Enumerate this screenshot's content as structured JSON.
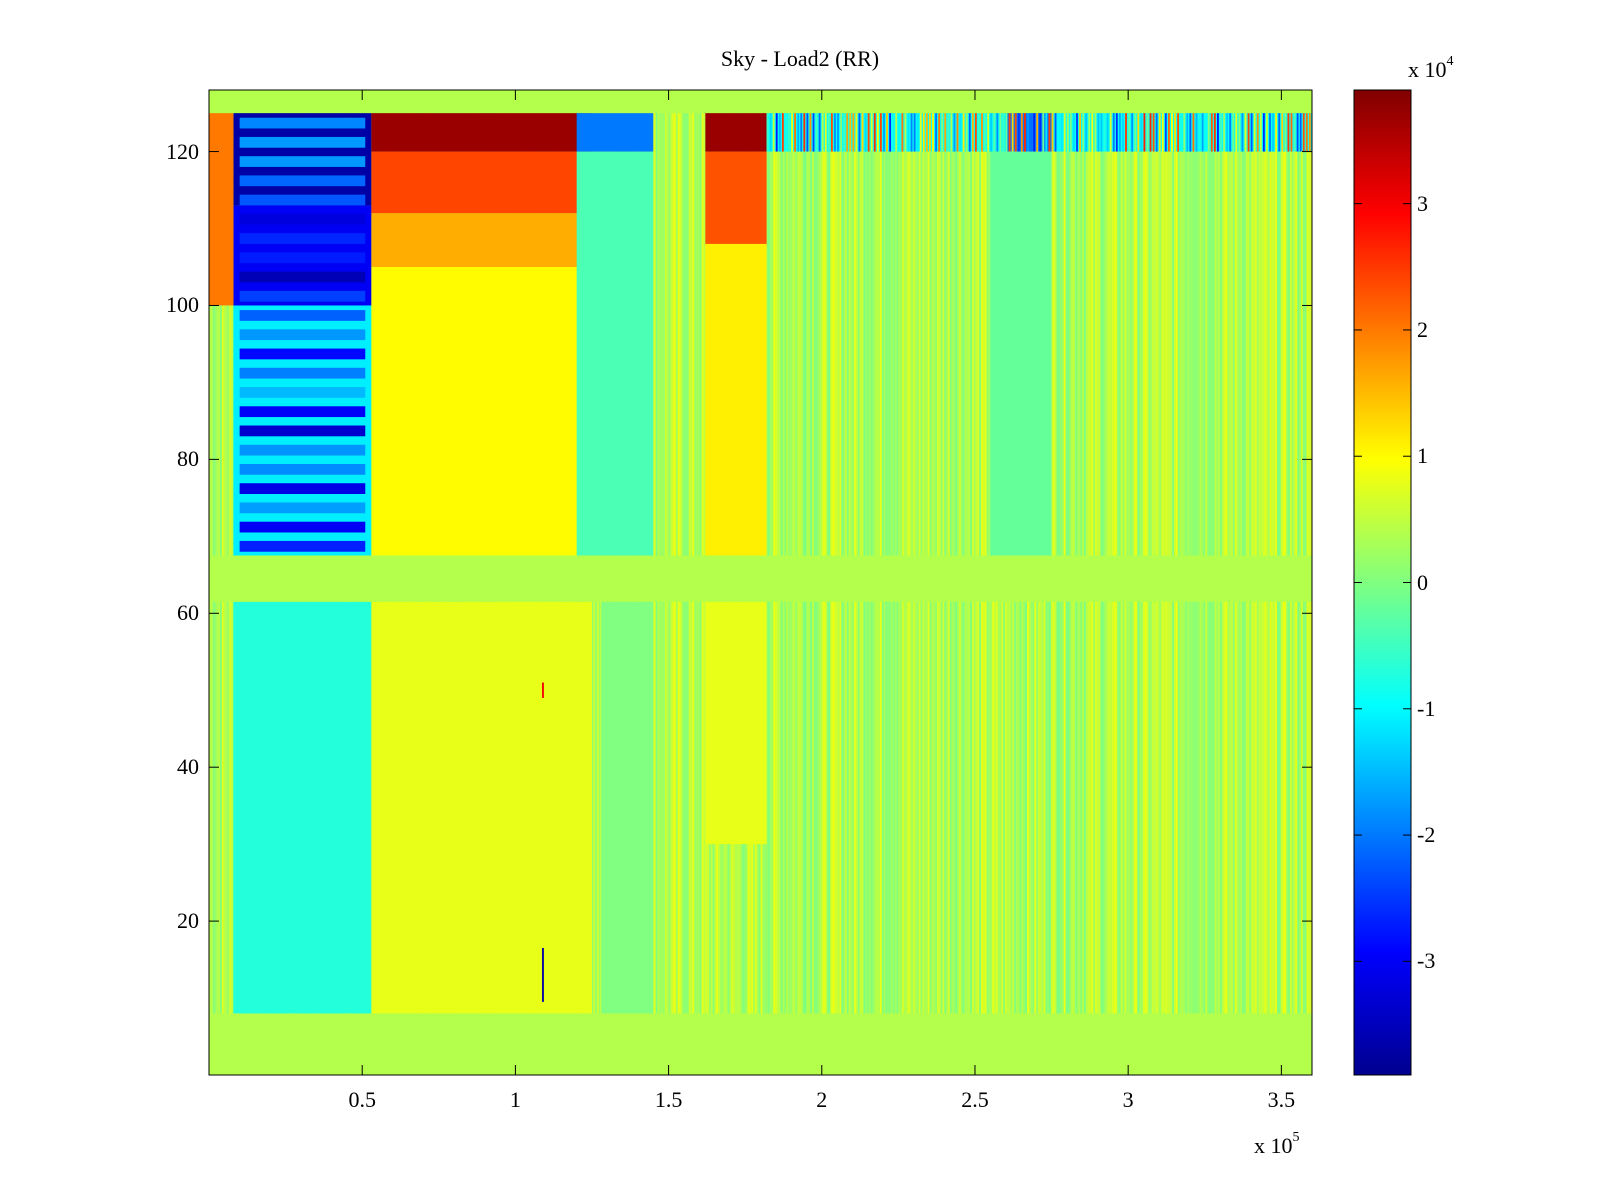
{
  "chart_data": {
    "type": "heatmap",
    "title": "Sky - Load2 (RR)",
    "xlabel": "",
    "ylabel": "",
    "colormap": "jet",
    "x_multiplier_label": "x 10",
    "x_multiplier_exponent": "5",
    "x_range": [
      0,
      3.6
    ],
    "x_ticks": [
      0.5,
      1,
      1.5,
      2,
      2.5,
      3,
      3.5
    ],
    "x_tick_labels": [
      "0.5",
      "1",
      "1.5",
      "2",
      "2.5",
      "3",
      "3.5"
    ],
    "y_range": [
      0,
      128
    ],
    "y_ticks": [
      20,
      40,
      60,
      80,
      100,
      120
    ],
    "y_tick_labels": [
      "20",
      "40",
      "60",
      "80",
      "100",
      "120"
    ],
    "colorbar": {
      "multiplier_label": "x 10",
      "multiplier_exponent": "4",
      "range": [
        -3.9,
        3.9
      ],
      "ticks": [
        -3,
        -2,
        -1,
        0,
        1,
        2,
        3
      ],
      "tick_labels": [
        "-3",
        "-2",
        "-1",
        "0",
        "1",
        "2",
        "3"
      ]
    },
    "background_value": 0.4,
    "regions": [
      {
        "x": [
          0.08,
          0.53
        ],
        "y": [
          8,
          61.5
        ],
        "value": -0.7
      },
      {
        "x": [
          0.08,
          0.53
        ],
        "y": [
          67.5,
          100
        ],
        "value": -1.1
      },
      {
        "x": [
          0.08,
          0.53
        ],
        "y": [
          100,
          113
        ],
        "value": -3.0
      },
      {
        "x": [
          0.08,
          0.53
        ],
        "y": [
          113,
          125
        ],
        "value": -3.6
      },
      {
        "x": [
          0.53,
          1.25
        ],
        "y": [
          67.5,
          105
        ],
        "value": 1.0
      },
      {
        "x": [
          0.53,
          1.25
        ],
        "y": [
          105,
          112
        ],
        "value": 1.6
      },
      {
        "x": [
          0.53,
          1.25
        ],
        "y": [
          112,
          120
        ],
        "value": 2.4
      },
      {
        "x": [
          0.53,
          1.25
        ],
        "y": [
          120,
          125
        ],
        "value": 3.7
      },
      {
        "x": [
          1.2,
          1.45
        ],
        "y": [
          67.5,
          120
        ],
        "value": -0.4
      },
      {
        "x": [
          1.2,
          1.45
        ],
        "y": [
          120,
          125
        ],
        "value": -2.0
      },
      {
        "x": [
          1.62,
          1.82
        ],
        "y": [
          67.5,
          108
        ],
        "value": 1.1
      },
      {
        "x": [
          1.62,
          1.82
        ],
        "y": [
          108,
          120
        ],
        "value": 2.3
      },
      {
        "x": [
          1.62,
          1.82
        ],
        "y": [
          120,
          125
        ],
        "value": 3.7
      },
      {
        "x": [
          0.0,
          0.08
        ],
        "y": [
          100,
          125
        ],
        "value": 2.0
      },
      {
        "x": [
          1.82,
          3.6
        ],
        "y": [
          120,
          125
        ],
        "value": -0.9
      },
      {
        "x": [
          2.6,
          2.75
        ],
        "y": [
          120,
          125
        ],
        "value": -2.0
      },
      {
        "x": [
          0.53,
          1.25
        ],
        "y": [
          8,
          61.5
        ],
        "value": 0.8
      },
      {
        "x": [
          1.62,
          1.82
        ],
        "y": [
          30,
          61.5
        ],
        "value": 0.8
      },
      {
        "x": [
          1.28,
          1.45
        ],
        "y": [
          8,
          61.5
        ],
        "value": 0.0
      },
      {
        "x": [
          2.55,
          2.75
        ],
        "y": [
          67.5,
          120
        ],
        "value": -0.2
      }
    ],
    "blank_band": {
      "y": [
        61.5,
        67.5
      ],
      "value": 0.4
    },
    "top_blank": {
      "y": [
        125,
        128
      ],
      "value": 0.4
    },
    "spikes": [
      {
        "x": 1.09,
        "y": [
          9.5,
          16.5
        ],
        "value": -3.6
      },
      {
        "x": 1.09,
        "y": [
          49,
          51
        ],
        "value": 3.0
      }
    ]
  }
}
